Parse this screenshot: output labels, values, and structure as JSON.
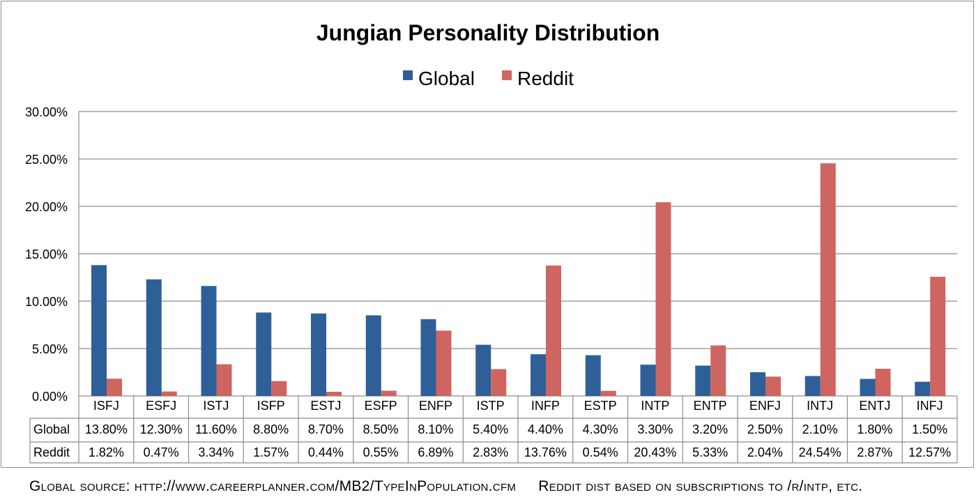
{
  "chart_data": {
    "type": "bar",
    "title": "Jungian Personality Distribution",
    "xlabel": "",
    "ylabel": "",
    "ylim": [
      0,
      30
    ],
    "y_ticks": [
      "0.00%",
      "5.00%",
      "10.00%",
      "15.00%",
      "20.00%",
      "25.00%",
      "30.00%"
    ],
    "y_tick_values": [
      0,
      5,
      10,
      15,
      20,
      25,
      30
    ],
    "grid": true,
    "legend_position": "top-center",
    "categories": [
      "ISFJ",
      "ESFJ",
      "ISTJ",
      "ISFP",
      "ESTJ",
      "ESFP",
      "ENFP",
      "ISTP",
      "INFP",
      "ESTP",
      "INTP",
      "ENTP",
      "ENFJ",
      "INTJ",
      "ENTJ",
      "INFJ"
    ],
    "series": [
      {
        "name": "Global",
        "color": "#2f5f97",
        "values": [
          13.8,
          12.3,
          11.6,
          8.8,
          8.7,
          8.5,
          8.1,
          5.4,
          4.4,
          4.3,
          3.3,
          3.2,
          2.5,
          2.1,
          1.8,
          1.5
        ],
        "labels": [
          "13.80%",
          "12.30%",
          "11.60%",
          "8.80%",
          "8.70%",
          "8.50%",
          "8.10%",
          "5.40%",
          "4.40%",
          "4.30%",
          "3.30%",
          "3.20%",
          "2.50%",
          "2.10%",
          "1.80%",
          "1.50%"
        ]
      },
      {
        "name": "Reddit",
        "color": "#cf6560",
        "values": [
          1.82,
          0.47,
          3.34,
          1.57,
          0.44,
          0.55,
          6.89,
          2.83,
          13.76,
          0.54,
          20.43,
          5.33,
          2.04,
          24.54,
          2.87,
          12.57
        ],
        "labels": [
          "1.82%",
          "0.47%",
          "3.34%",
          "1.57%",
          "0.44%",
          "0.55%",
          "6.89%",
          "2.83%",
          "13.76%",
          "0.54%",
          "20.43%",
          "5.33%",
          "2.04%",
          "24.54%",
          "2.87%",
          "12.57%"
        ]
      }
    ]
  },
  "footer": {
    "source_left": "Global source: http://www.careerplanner.com/MB2/TypeInPopulation.cfm",
    "source_right": "Reddit dist based on subscriptions to /r/intp, etc."
  },
  "colors": {
    "gridline": "#8c8c8c",
    "frame": "#8c8c8c"
  }
}
